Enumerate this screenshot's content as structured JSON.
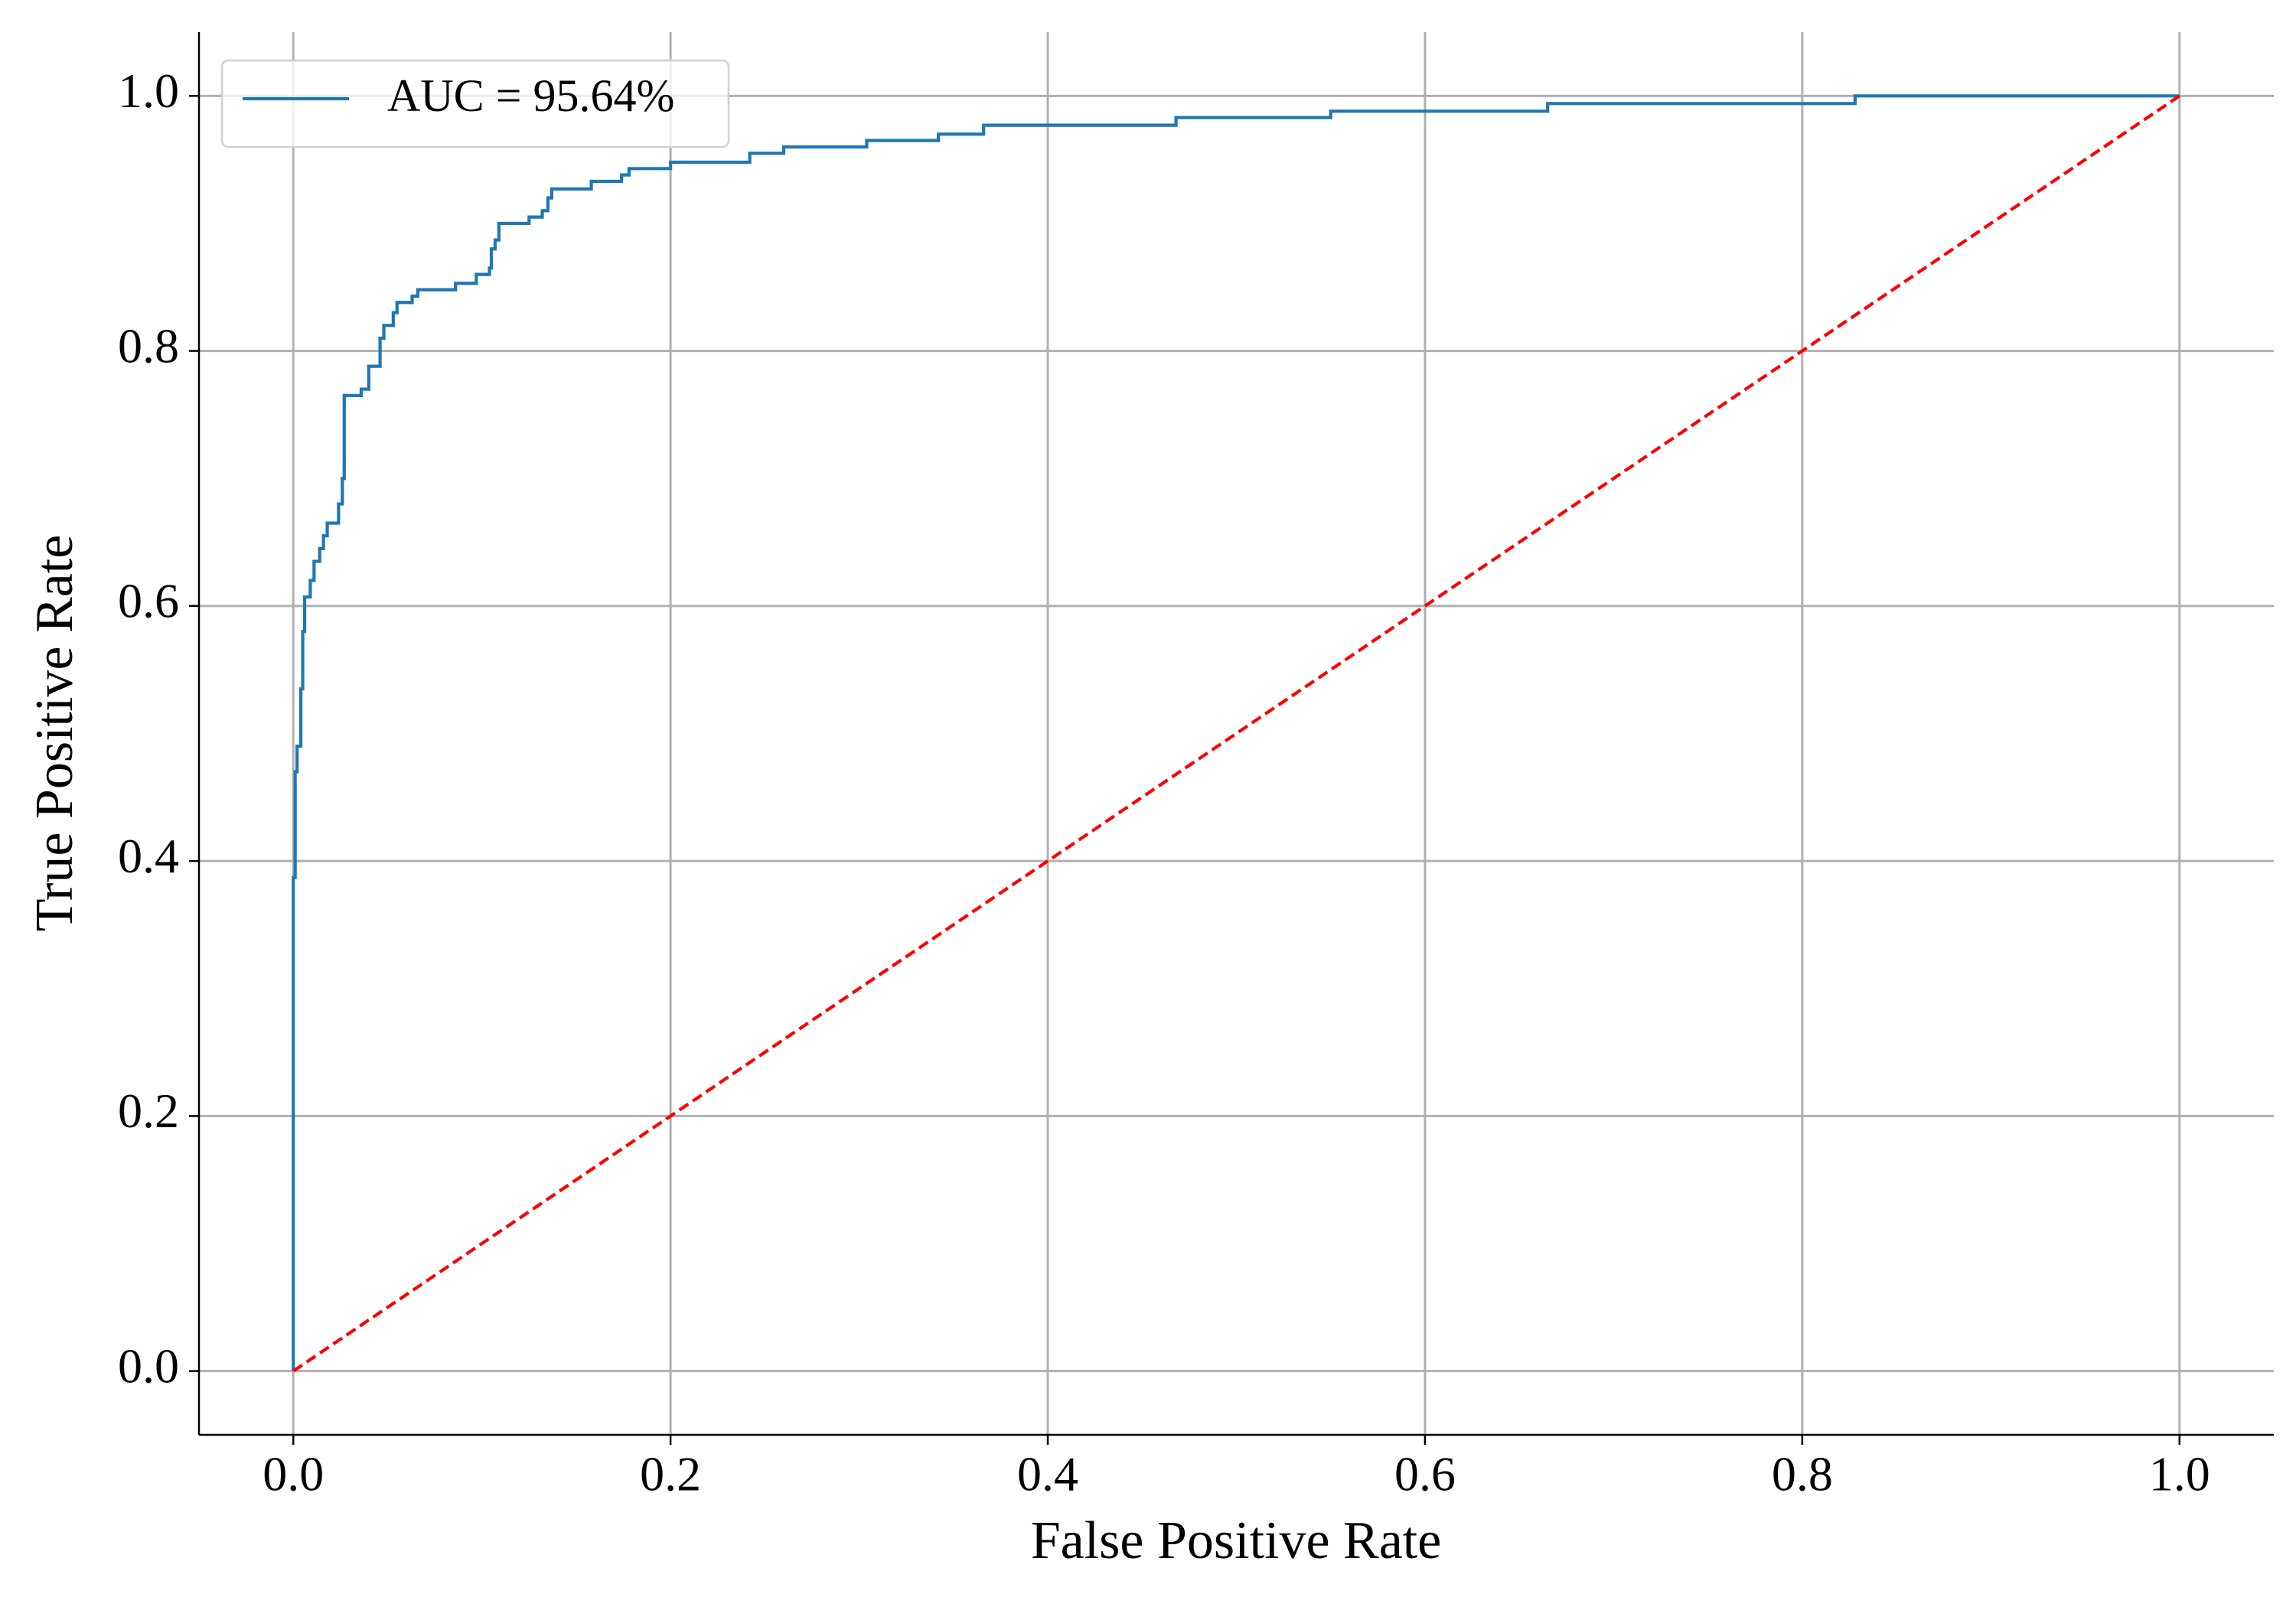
{
  "chart_data": {
    "type": "line",
    "xlabel": "False Positive Rate",
    "ylabel": "True Positive Rate",
    "xlim": [
      -0.05,
      1.05
    ],
    "ylim": [
      -0.05,
      1.05
    ],
    "xticks": [
      {
        "value": 0,
        "label": "0.0"
      },
      0.2,
      0.4,
      0.6,
      0.8,
      {
        "value": 1,
        "label": "1.0"
      }
    ],
    "yticks": [
      {
        "value": 0,
        "label": "0.0"
      },
      0.2,
      0.4,
      0.6,
      0.8,
      {
        "value": 1,
        "label": "1.0"
      }
    ],
    "grid": true,
    "legend": "upper left",
    "series": [
      {
        "name": "AUC = 95.64%",
        "color": "#1f77b4",
        "linestyle": "solid",
        "x": [
          0,
          0,
          0.001,
          0.001,
          0.002,
          0.002,
          0.004,
          0.004,
          0.005,
          0.005,
          0.006,
          0.006,
          0.009,
          0.009,
          0.011,
          0.011,
          0.014,
          0.014,
          0.016,
          0.016,
          0.018,
          0.018,
          0.024,
          0.024,
          0.026,
          0.026,
          0.027,
          0.027,
          0.036,
          0.036,
          0.04,
          0.04,
          0.046,
          0.046,
          0.048,
          0.048,
          0.053,
          0.053,
          0.055,
          0.055,
          0.063,
          0.063,
          0.066,
          0.066,
          0.086,
          0.086,
          0.097,
          0.097,
          0.104,
          0.104,
          0.105,
          0.105,
          0.107,
          0.107,
          0.109,
          0.109,
          0.125,
          0.125,
          0.132,
          0.132,
          0.135,
          0.135,
          0.137,
          0.137,
          0.158,
          0.158,
          0.174,
          0.174,
          0.178,
          0.178,
          0.2,
          0.2,
          0.242,
          0.242,
          0.26,
          0.26,
          0.304,
          0.304,
          0.342,
          0.342,
          0.366,
          0.366,
          0.468,
          0.468,
          0.55,
          0.55,
          0.665,
          0.665,
          0.828,
          0.828,
          1
        ],
        "values": [
          0,
          0.387,
          0.387,
          0.47,
          0.47,
          0.49,
          0.49,
          0.535,
          0.535,
          0.58,
          0.58,
          0.607,
          0.607,
          0.62,
          0.62,
          0.635,
          0.635,
          0.645,
          0.645,
          0.655,
          0.655,
          0.665,
          0.665,
          0.68,
          0.68,
          0.7,
          0.7,
          0.765,
          0.765,
          0.77,
          0.77,
          0.788,
          0.788,
          0.81,
          0.81,
          0.82,
          0.82,
          0.83,
          0.83,
          0.838,
          0.838,
          0.843,
          0.843,
          0.848,
          0.848,
          0.853,
          0.853,
          0.86,
          0.86,
          0.865,
          0.865,
          0.88,
          0.88,
          0.887,
          0.887,
          0.9,
          0.9,
          0.905,
          0.905,
          0.91,
          0.91,
          0.92,
          0.92,
          0.927,
          0.927,
          0.933,
          0.933,
          0.938,
          0.938,
          0.943,
          0.943,
          0.948,
          0.948,
          0.955,
          0.955,
          0.96,
          0.96,
          0.965,
          0.965,
          0.97,
          0.97,
          0.977,
          0.977,
          0.983,
          0.983,
          0.988,
          0.988,
          0.994,
          0.994,
          1,
          1
        ]
      },
      {
        "color": "#ff0000",
        "linestyle": "dashed",
        "x": [
          0,
          1
        ],
        "values": [
          0,
          1
        ]
      }
    ]
  }
}
